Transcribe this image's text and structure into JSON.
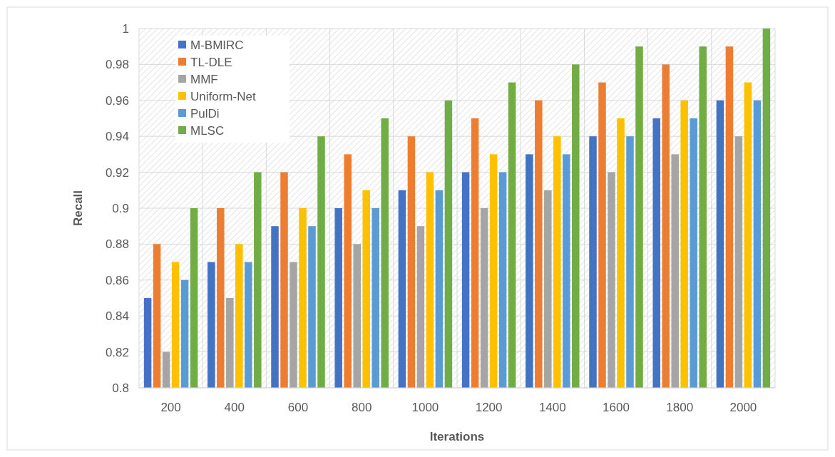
{
  "chart_data": {
    "type": "bar",
    "xlabel": "Iterations",
    "ylabel": "Recall",
    "categories": [
      "200",
      "400",
      "600",
      "800",
      "1000",
      "1200",
      "1400",
      "1600",
      "1800",
      "2000"
    ],
    "series": [
      {
        "name": "M-BMIRC",
        "color": "#4472c4",
        "values": [
          0.85,
          0.87,
          0.89,
          0.9,
          0.91,
          0.92,
          0.93,
          0.94,
          0.95,
          0.96
        ]
      },
      {
        "name": "TL-DLE",
        "color": "#ed7d31",
        "values": [
          0.88,
          0.9,
          0.92,
          0.93,
          0.94,
          0.95,
          0.96,
          0.97,
          0.98,
          0.99
        ]
      },
      {
        "name": "MMF",
        "color": "#a5a5a5",
        "values": [
          0.82,
          0.85,
          0.87,
          0.88,
          0.89,
          0.9,
          0.91,
          0.92,
          0.93,
          0.94
        ]
      },
      {
        "name": "Uniform-Net",
        "color": "#ffc000",
        "values": [
          0.87,
          0.88,
          0.9,
          0.91,
          0.92,
          0.93,
          0.94,
          0.95,
          0.96,
          0.97
        ]
      },
      {
        "name": "PulDi",
        "color": "#5b9bd5",
        "values": [
          0.86,
          0.87,
          0.89,
          0.9,
          0.91,
          0.92,
          0.93,
          0.94,
          0.95,
          0.96
        ]
      },
      {
        "name": "MLSC",
        "color": "#70ad47",
        "values": [
          0.9,
          0.92,
          0.94,
          0.95,
          0.96,
          0.97,
          0.98,
          0.99,
          0.99,
          1.0
        ]
      }
    ],
    "ylim": [
      0.8,
      1
    ],
    "yticks": [
      0.8,
      0.82,
      0.84,
      0.86,
      0.88,
      0.9,
      0.92,
      0.94,
      0.96,
      0.98,
      1
    ],
    "grid": true,
    "legend": "top left"
  }
}
